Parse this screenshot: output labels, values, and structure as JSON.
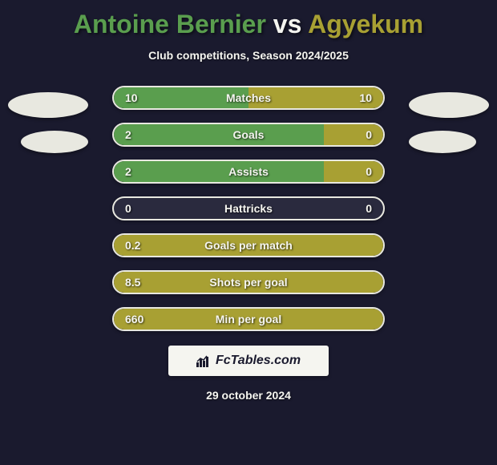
{
  "title": {
    "player1": "Antoine Bernier",
    "vs": "vs",
    "player2": "Agyekum"
  },
  "subtitle": "Club competitions, Season 2024/2025",
  "colors": {
    "background": "#1a1a2e",
    "player1": "#5a9e4e",
    "player2": "#a8a033",
    "text": "#f5f5f0",
    "badge": "#e8e8e0",
    "row_bg": "#2a2a3e",
    "row_border": "#e8e8e0"
  },
  "stats": [
    {
      "label": "Matches",
      "left_val": "10",
      "right_val": "10",
      "left_pct": 50,
      "right_pct": 50,
      "mode": "split"
    },
    {
      "label": "Goals",
      "left_val": "2",
      "right_val": "0",
      "left_pct": 78,
      "right_pct": 22,
      "mode": "split"
    },
    {
      "label": "Assists",
      "left_val": "2",
      "right_val": "0",
      "left_pct": 78,
      "right_pct": 22,
      "mode": "split"
    },
    {
      "label": "Hattricks",
      "left_val": "0",
      "right_val": "0",
      "left_pct": 0,
      "right_pct": 0,
      "mode": "empty"
    },
    {
      "label": "Goals per match",
      "left_val": "0.2",
      "right_val": "",
      "left_pct": 100,
      "right_pct": 0,
      "mode": "full-left"
    },
    {
      "label": "Shots per goal",
      "left_val": "8.5",
      "right_val": "",
      "left_pct": 100,
      "right_pct": 0,
      "mode": "full-left"
    },
    {
      "label": "Min per goal",
      "left_val": "660",
      "right_val": "",
      "left_pct": 100,
      "right_pct": 0,
      "mode": "full-left"
    }
  ],
  "footer": {
    "brand": "FcTables.com",
    "date": "29 october 2024"
  }
}
